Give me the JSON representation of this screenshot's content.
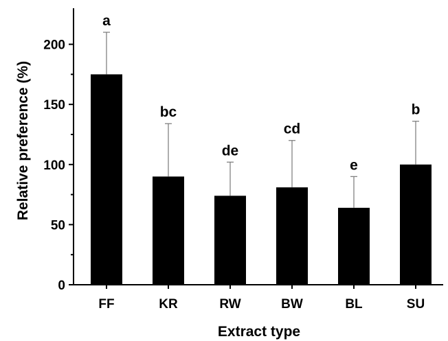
{
  "chart_data": {
    "type": "bar",
    "title": "",
    "xlabel": "Extract type",
    "ylabel": "Relative preference (%)",
    "categories": [
      "FF",
      "KR",
      "RW",
      "BW",
      "BL",
      "SU"
    ],
    "values": [
      175,
      90,
      74,
      81,
      64,
      100
    ],
    "error": [
      35,
      44,
      28,
      39,
      26,
      36
    ],
    "significance_letters": [
      "a",
      "bc",
      "de",
      "cd",
      "e",
      "b"
    ],
    "ylim": [
      0,
      230
    ],
    "yticks": [
      0,
      50,
      100,
      150,
      200
    ],
    "grid": false,
    "legend": "none",
    "bar_color": "#000000",
    "error_bar_color": "#777777"
  }
}
